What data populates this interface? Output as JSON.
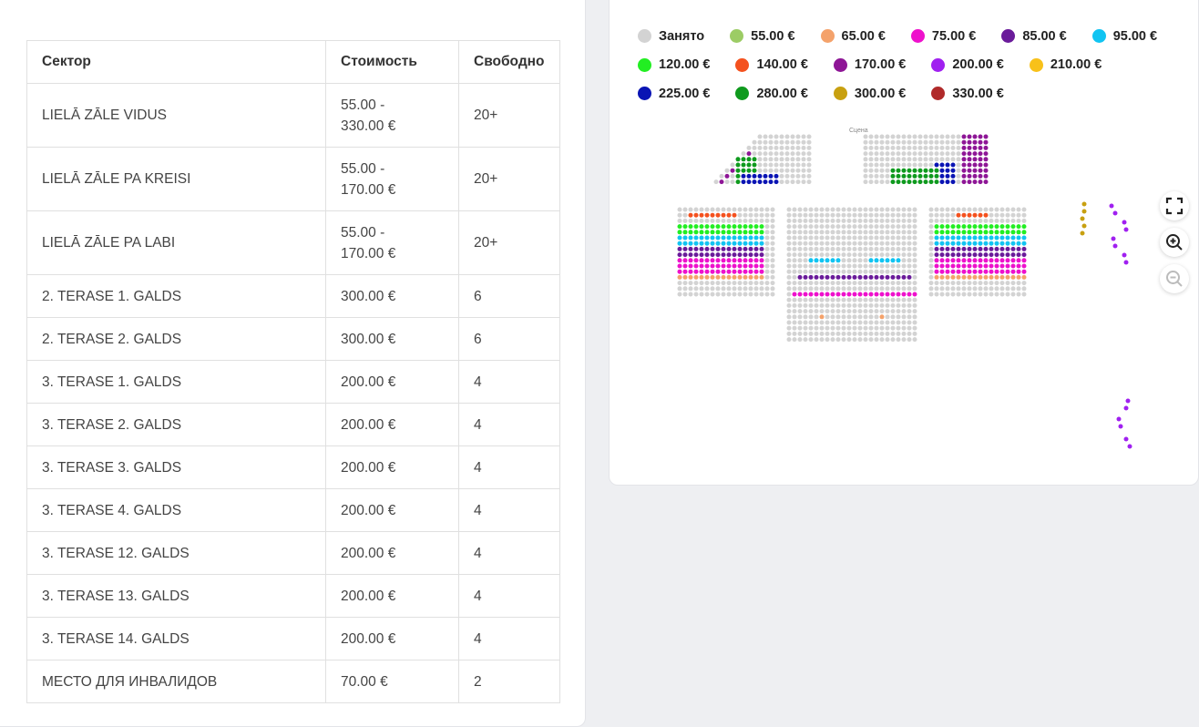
{
  "table": {
    "headers": {
      "sector": "Сектор",
      "price": "Стоимость",
      "free": "Свободно"
    },
    "rows": [
      {
        "sector": "LIELĀ ZĀLE VIDUS",
        "price": "55.00 -\n330.00 €",
        "free": "20+"
      },
      {
        "sector": "LIELĀ ZĀLE PA KREISI",
        "price": "55.00 -\n170.00 €",
        "free": "20+"
      },
      {
        "sector": "LIELĀ ZĀLE PA LABI",
        "price": "55.00 -\n170.00 €",
        "free": "20+"
      },
      {
        "sector": "2. TERASE 1. GALDS",
        "price": "300.00 €",
        "free": "6"
      },
      {
        "sector": "2. TERASE 2. GALDS",
        "price": "300.00 €",
        "free": "6"
      },
      {
        "sector": "3. TERASE 1. GALDS",
        "price": "200.00 €",
        "free": "4"
      },
      {
        "sector": "3. TERASE 2. GALDS",
        "price": "200.00 €",
        "free": "4"
      },
      {
        "sector": "3. TERASE 3. GALDS",
        "price": "200.00 €",
        "free": "4"
      },
      {
        "sector": "3. TERASE 4. GALDS",
        "price": "200.00 €",
        "free": "4"
      },
      {
        "sector": "3. TERASE 12. GALDS",
        "price": "200.00 €",
        "free": "4"
      },
      {
        "sector": "3. TERASE 13. GALDS",
        "price": "200.00 €",
        "free": "4"
      },
      {
        "sector": "3. TERASE 14. GALDS",
        "price": "200.00 €",
        "free": "4"
      },
      {
        "sector": "МЕСТО ДЛЯ ИНВАЛИДОВ",
        "price": "70.00 €",
        "free": "2"
      }
    ]
  },
  "legend": [
    {
      "label": "Занято",
      "color": "#d3d3d3"
    },
    {
      "label": "55.00 €",
      "color": "#9ccc65"
    },
    {
      "label": "65.00 €",
      "color": "#f4a26b"
    },
    {
      "label": "75.00 €",
      "color": "#ee11cc"
    },
    {
      "label": "85.00 €",
      "color": "#6a1b9a"
    },
    {
      "label": "95.00 €",
      "color": "#11c4f2"
    },
    {
      "label": "120.00 €",
      "color": "#22ee22"
    },
    {
      "label": "140.00 €",
      "color": "#f4511e"
    },
    {
      "label": "170.00 €",
      "color": "#8e1696"
    },
    {
      "label": "200.00 €",
      "color": "#a020f0"
    },
    {
      "label": "210.00 €",
      "color": "#f8c11a"
    },
    {
      "label": "225.00 €",
      "color": "#0a14b4"
    },
    {
      "label": "280.00 €",
      "color": "#0f9a1e"
    },
    {
      "label": "300.00 €",
      "color": "#c8a010"
    },
    {
      "label": "330.00 €",
      "color": "#b02a2a"
    }
  ],
  "seat_map": {
    "stage_label": "Сцена"
  },
  "controls": {
    "fullscreen_icon": "fullscreen-icon",
    "zoom_in_icon": "zoom-in-icon",
    "zoom_out_icon": "zoom-out-icon"
  }
}
